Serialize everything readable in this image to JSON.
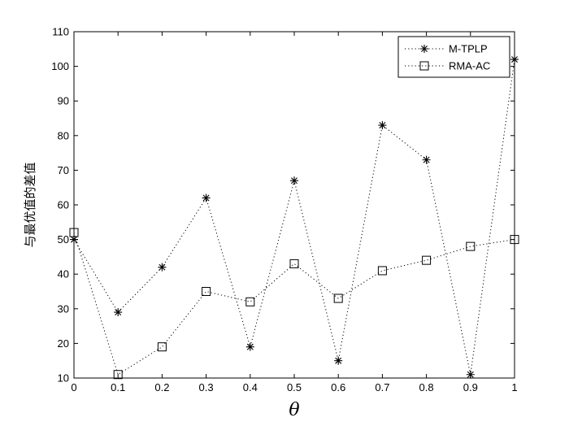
{
  "chart_data": {
    "type": "line",
    "x": [
      0,
      0.1,
      0.2,
      0.3,
      0.4,
      0.5,
      0.6,
      0.7,
      0.8,
      0.9,
      1
    ],
    "series": [
      {
        "name": "M-TPLP",
        "marker": "asterisk",
        "line_style": "dotted",
        "color": "#000000",
        "values": [
          50,
          29,
          42,
          62,
          19,
          67,
          15,
          83,
          73,
          11,
          102
        ]
      },
      {
        "name": "RMA-AC",
        "marker": "square",
        "line_style": "dotted",
        "color": "#000000",
        "values": [
          52,
          11,
          19,
          35,
          32,
          43,
          33,
          41,
          44,
          48,
          50
        ]
      }
    ],
    "xlabel": "θ",
    "ylabel": "与最优值的差值",
    "xlim": [
      0,
      1
    ],
    "ylim": [
      10,
      110
    ],
    "xticks": [
      "0",
      "0.1",
      "0.2",
      "0.3",
      "0.4",
      "0.5",
      "0.6",
      "0.7",
      "0.8",
      "0.9",
      "1"
    ],
    "yticks": [
      "10",
      "20",
      "30",
      "40",
      "50",
      "60",
      "70",
      "80",
      "90",
      "100",
      "110"
    ],
    "grid": false,
    "legend_position": "top-right"
  }
}
